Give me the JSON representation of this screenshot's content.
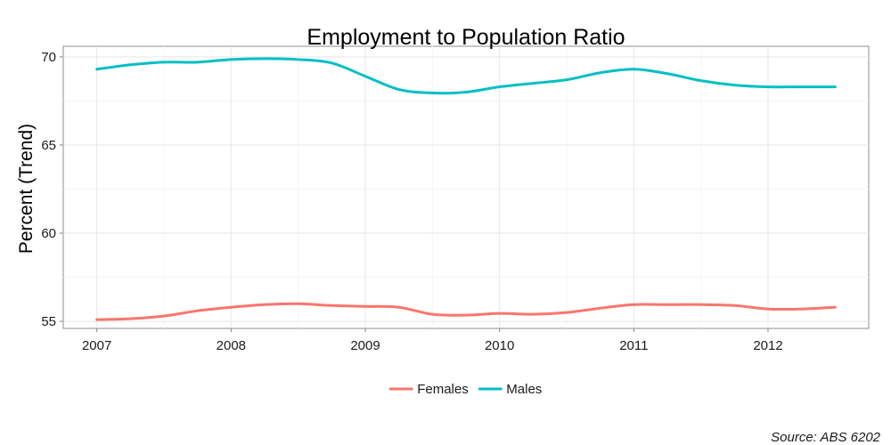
{
  "chart_data": {
    "type": "line",
    "title": "Employment to Population Ratio",
    "xlabel": "",
    "ylabel": "Percent (Trend)",
    "source": "Source: ABS 6202",
    "xlim": [
      2006.75,
      2012.75
    ],
    "ylim": [
      54.6,
      70.6
    ],
    "x_ticks": [
      2007,
      2008,
      2009,
      2010,
      2011,
      2012
    ],
    "x_tick_labels": [
      "2007",
      "2008",
      "2009",
      "2010",
      "2011",
      "2012"
    ],
    "y_ticks": [
      55,
      60,
      65,
      70
    ],
    "y_tick_labels": [
      "55",
      "60",
      "65",
      "70"
    ],
    "grid": true,
    "legend_position": "bottom",
    "series": [
      {
        "name": "Females",
        "color": "#F8766D",
        "x": [
          2007.0,
          2007.25,
          2007.5,
          2007.75,
          2008.0,
          2008.25,
          2008.5,
          2008.75,
          2009.0,
          2009.25,
          2009.5,
          2009.75,
          2010.0,
          2010.25,
          2010.5,
          2010.75,
          2011.0,
          2011.25,
          2011.5,
          2011.75,
          2012.0,
          2012.25,
          2012.5
        ],
        "values": [
          55.1,
          55.15,
          55.3,
          55.6,
          55.8,
          55.95,
          56.0,
          55.9,
          55.85,
          55.8,
          55.4,
          55.35,
          55.45,
          55.4,
          55.5,
          55.75,
          55.95,
          55.95,
          55.95,
          55.9,
          55.7,
          55.7,
          55.8
        ]
      },
      {
        "name": "Males",
        "color": "#00BFC4",
        "x": [
          2007.0,
          2007.25,
          2007.5,
          2007.75,
          2008.0,
          2008.25,
          2008.5,
          2008.75,
          2009.0,
          2009.25,
          2009.5,
          2009.75,
          2010.0,
          2010.25,
          2010.5,
          2010.75,
          2011.0,
          2011.25,
          2011.5,
          2011.75,
          2012.0,
          2012.25,
          2012.5
        ],
        "values": [
          69.3,
          69.55,
          69.7,
          69.7,
          69.85,
          69.9,
          69.85,
          69.65,
          68.9,
          68.15,
          67.95,
          68.0,
          68.3,
          68.5,
          68.7,
          69.1,
          69.3,
          69.05,
          68.65,
          68.4,
          68.3,
          68.3,
          68.3
        ]
      }
    ]
  }
}
